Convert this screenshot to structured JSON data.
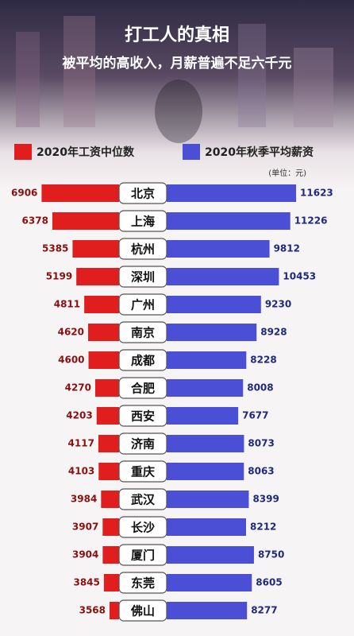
{
  "chart_data": {
    "type": "butterfly-bar",
    "title": "打工人的真相",
    "subtitle": "被平均的高收入，月薪普遍不足六千元",
    "unit_note": "(单位：元)",
    "categories": [
      "北京",
      "上海",
      "杭州",
      "深圳",
      "广州",
      "南京",
      "成都",
      "合肥",
      "西安",
      "济南",
      "重庆",
      "武汉",
      "长沙",
      "厦门",
      "东莞",
      "佛山"
    ],
    "series": [
      {
        "name": "2020年工资中位数",
        "color": "#e01e1e",
        "values": [
          6906,
          6378,
          5385,
          5199,
          4811,
          4620,
          4600,
          4270,
          4203,
          4117,
          4103,
          3984,
          3907,
          3904,
          3845,
          3568
        ]
      },
      {
        "name": "2020年秋季平均薪资",
        "color": "#4b4fd6",
        "values": [
          11623,
          11226,
          9812,
          10453,
          9230,
          8928,
          8228,
          8008,
          7677,
          8073,
          8063,
          8399,
          8212,
          8750,
          8605,
          8277
        ]
      }
    ],
    "xlim": [
      3100,
      7000
    ],
    "x2lim": [
      2800,
      12000
    ]
  }
}
